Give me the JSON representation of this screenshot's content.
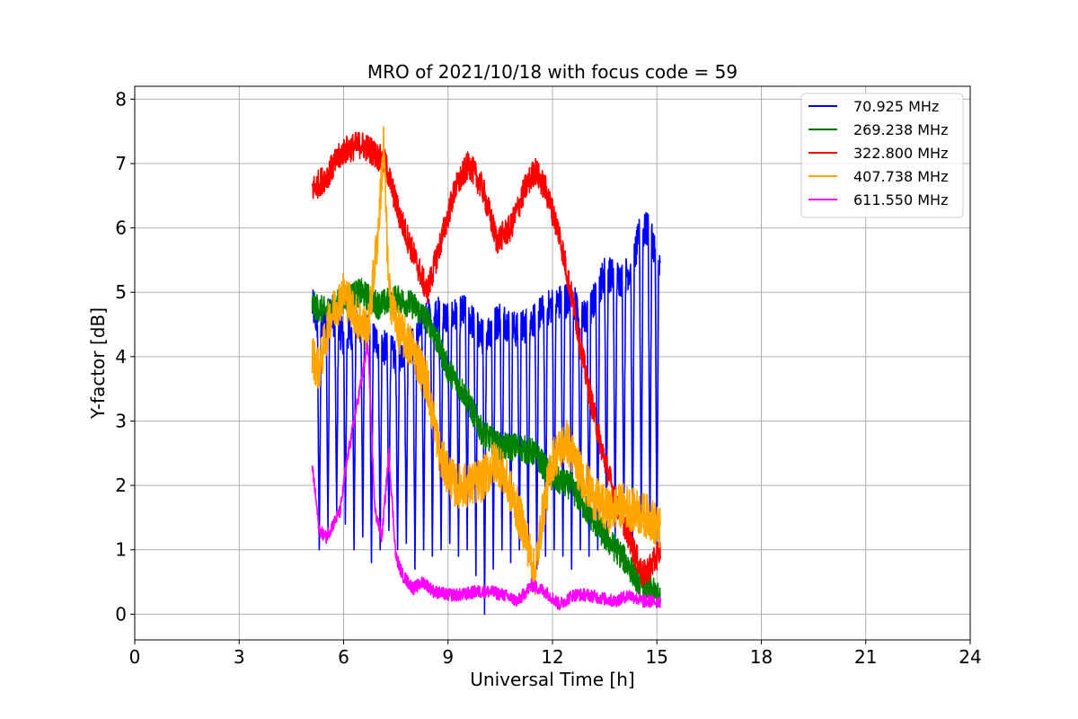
{
  "chart_data": {
    "type": "line",
    "title": "MRO of 2021/10/18 with focus code = 59",
    "xlabel": "Universal Time [h]",
    "ylabel": "Y-factor [dB]",
    "xlim": [
      0,
      24
    ],
    "ylim": [
      -0.4,
      8.2
    ],
    "xticks": [
      0,
      3,
      6,
      9,
      12,
      15,
      18,
      21,
      24
    ],
    "yticks": [
      0,
      1,
      2,
      3,
      4,
      5,
      6,
      7,
      8
    ],
    "grid": true,
    "legend_position": "top-right",
    "series": [
      {
        "name": "  70.925 MHz",
        "color": "#0000ff",
        "style": "fluctuating",
        "x": [
          5.1,
          5.3,
          5.6,
          6.0,
          6.5,
          7.0,
          7.5,
          8.0,
          8.5,
          9.0,
          9.5,
          10.0,
          10.5,
          11.0,
          11.5,
          12.0,
          12.5,
          13.0,
          13.5,
          14.0,
          14.3,
          14.5,
          14.8,
          15.0,
          15.1
        ],
        "y": [
          4.8,
          4.4,
          4.7,
          4.3,
          4.5,
          4.2,
          4.0,
          4.2,
          4.7,
          4.6,
          4.7,
          4.3,
          4.6,
          4.4,
          4.6,
          4.8,
          4.9,
          4.6,
          5.3,
          5.2,
          5.4,
          5.9,
          6.0,
          5.5,
          5.3
        ],
        "dip_times": [
          5.3,
          5.55,
          5.8,
          6.05,
          6.3,
          6.55,
          6.8,
          7.05,
          7.3,
          7.55,
          7.8,
          8.05,
          8.3,
          8.55,
          8.8,
          9.05,
          9.3,
          9.55,
          9.8,
          10.05,
          10.3,
          10.55,
          10.8,
          11.05,
          11.3,
          11.55,
          11.8,
          12.05,
          12.3,
          12.55,
          12.8,
          13.05,
          13.3,
          13.55,
          13.8,
          14.05,
          14.3,
          14.55,
          14.8,
          15.0
        ],
        "dip_values": [
          1.0,
          1.3,
          1.6,
          1.4,
          1.0,
          1.2,
          0.8,
          1.0,
          1.3,
          1.0,
          1.1,
          0.7,
          1.0,
          0.9,
          1.0,
          1.1,
          0.9,
          1.0,
          0.6,
          0.0,
          0.7,
          1.0,
          0.8,
          1.0,
          0.8,
          0.7,
          0.9,
          1.0,
          0.9,
          0.7,
          1.0,
          0.9,
          1.0,
          1.2,
          1.1,
          1.3,
          1.1,
          1.3,
          1.3,
          1.0
        ]
      },
      {
        "name": "269.238 MHz",
        "color": "#008000",
        "style": "noisy",
        "x": [
          5.1,
          5.5,
          6.0,
          6.5,
          7.0,
          7.5,
          8.0,
          8.5,
          9.0,
          9.5,
          10.0,
          10.5,
          11.0,
          11.5,
          12.0,
          12.5,
          13.0,
          13.5,
          14.0,
          14.5,
          15.0,
          15.1
        ],
        "y": [
          4.8,
          4.7,
          4.9,
          5.0,
          4.8,
          4.9,
          4.8,
          4.5,
          3.8,
          3.4,
          2.8,
          2.6,
          2.6,
          2.5,
          2.1,
          2.0,
          1.6,
          1.2,
          0.9,
          0.5,
          0.3,
          0.2
        ]
      },
      {
        "name": "322.800 MHz",
        "color": "#ff0000",
        "style": "noisy",
        "x": [
          5.1,
          5.5,
          6.0,
          6.5,
          6.8,
          7.2,
          7.6,
          8.0,
          8.4,
          8.8,
          9.2,
          9.6,
          10.0,
          10.4,
          10.8,
          11.2,
          11.5,
          11.8,
          12.2,
          12.6,
          13.0,
          13.4,
          13.8,
          14.2,
          14.6,
          14.9,
          15.1
        ],
        "y": [
          6.6,
          6.8,
          7.2,
          7.3,
          7.2,
          7.0,
          6.2,
          5.6,
          5.0,
          5.8,
          6.6,
          7.0,
          6.6,
          5.8,
          6.0,
          6.6,
          6.9,
          6.6,
          5.9,
          4.8,
          3.6,
          2.6,
          1.8,
          1.2,
          0.6,
          0.8,
          1.0
        ]
      },
      {
        "name": "407.738 MHz",
        "color": "#ffa500",
        "style": "noisy",
        "x": [
          5.1,
          5.3,
          5.6,
          6.0,
          6.4,
          6.7,
          7.0,
          7.15,
          7.3,
          7.6,
          8.0,
          8.4,
          8.8,
          9.2,
          9.6,
          10.0,
          10.4,
          10.8,
          11.2,
          11.5,
          11.7,
          12.0,
          12.4,
          12.8,
          13.2,
          13.6,
          14.0,
          14.4,
          14.8,
          15.1
        ],
        "y": [
          4.0,
          3.8,
          4.6,
          5.0,
          4.6,
          4.4,
          6.0,
          7.3,
          5.0,
          4.4,
          4.1,
          3.6,
          2.4,
          2.0,
          2.0,
          2.1,
          2.4,
          1.9,
          1.3,
          0.6,
          1.5,
          2.4,
          2.7,
          2.2,
          1.8,
          1.6,
          1.7,
          1.6,
          1.5,
          1.3
        ]
      },
      {
        "name": "611.550 MHz",
        "color": "#ff00ff",
        "style": "noisy",
        "x": [
          5.1,
          5.3,
          5.5,
          5.7,
          5.9,
          6.1,
          6.3,
          6.5,
          6.7,
          6.9,
          7.1,
          7.3,
          7.5,
          7.7,
          8.0,
          8.3,
          8.6,
          9.0,
          9.4,
          9.8,
          10.2,
          10.6,
          11.0,
          11.4,
          11.8,
          12.2,
          12.6,
          13.0,
          13.4,
          13.8,
          14.2,
          14.6,
          15.1
        ],
        "y": [
          2.3,
          1.3,
          1.2,
          1.4,
          1.6,
          2.4,
          3.0,
          3.6,
          4.2,
          1.6,
          1.2,
          2.5,
          0.9,
          0.6,
          0.4,
          0.5,
          0.35,
          0.3,
          0.3,
          0.35,
          0.35,
          0.3,
          0.2,
          0.45,
          0.35,
          0.15,
          0.3,
          0.3,
          0.25,
          0.2,
          0.3,
          0.2,
          0.2
        ]
      }
    ]
  }
}
